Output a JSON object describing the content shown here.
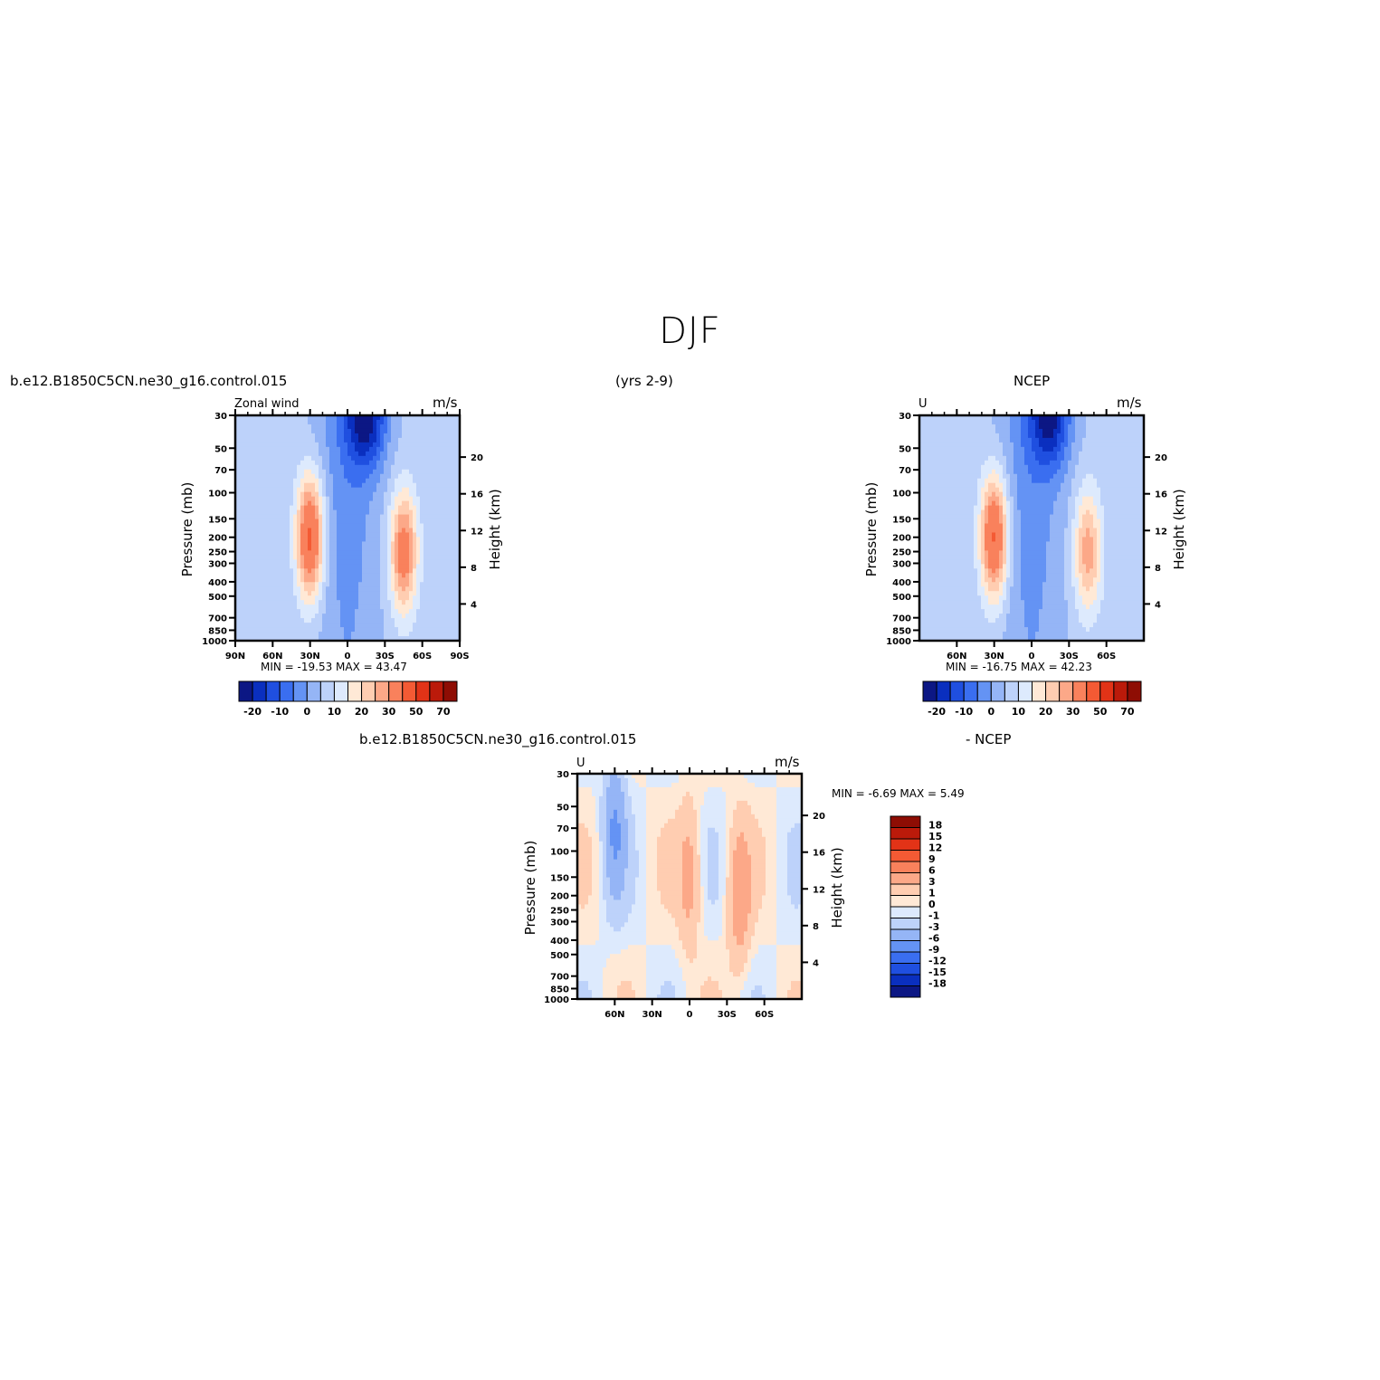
{
  "page": {
    "title": "DJF",
    "subtitle_left": "b.e12.B1850C5CN.ne30_g16.control.015",
    "subtitle_center": "(yrs 2-9)",
    "subtitle_right": "NCEP"
  },
  "panels": {
    "model": {
      "var_label": "Zonal wind",
      "units": "m/s",
      "min_max": "MIN =  -19.53   MAX =   43.47",
      "y_label": "Pressure (mb)",
      "y2_label": "Height (km)"
    },
    "obs": {
      "var_label": "U",
      "units": "m/s",
      "min_max": "MIN =  -16.75   MAX =   42.23",
      "y_label": "Pressure (mb)",
      "y2_label": "Height (km)"
    },
    "diff": {
      "title_left": "b.e12.B1850C5CN.ne30_g16.control.015",
      "title_right": "- NCEP",
      "var_label": "U",
      "units": "m/s",
      "min_max": "MIN =   -6.69   MAX =     5.49",
      "y_label": "Pressure (mb)",
      "y2_label": "Height (km)"
    }
  },
  "chart_data": [
    {
      "type": "heatmap",
      "name": "model",
      "title": "Zonal wind",
      "units": "m/s",
      "xlabel": "",
      "ylabel": "Pressure (mb)",
      "y2label": "Height (km)",
      "x_ticks": [
        "90N",
        "60N",
        "30N",
        "0",
        "30S",
        "60S",
        "90S"
      ],
      "y_ticks": [
        30,
        50,
        70,
        100,
        150,
        200,
        250,
        300,
        400,
        500,
        700,
        850,
        1000
      ],
      "y2_ticks": [
        20,
        16,
        12,
        8,
        4
      ],
      "xlim": [
        90,
        -90
      ],
      "ylim": [
        1000,
        30
      ],
      "y_scale": "log",
      "min": -19.53,
      "max": 43.47,
      "colorbar_labels": [
        "-20",
        "-10",
        "0",
        "10",
        "20",
        "30",
        "50",
        "70"
      ],
      "colorbar_colors": [
        "#0c1784",
        "#0a2fbf",
        "#1f4fe0",
        "#3a6ef0",
        "#6493f4",
        "#95b5f6",
        "#bdd2fa",
        "#ddeafd",
        "#ffe9d6",
        "#ffcdb1",
        "#fca888",
        "#f9815c",
        "#f45a34",
        "#e23317",
        "#bb1a0a",
        "#8e0d04"
      ],
      "features": [
        {
          "kind": "jet_max",
          "lat": 30,
          "pressure": 200,
          "value": 43
        },
        {
          "kind": "jet_max",
          "lat": -45,
          "pressure": 250,
          "value": 35
        },
        {
          "kind": "easterly_min",
          "lat": -15,
          "pressure": 30,
          "value": -19
        }
      ]
    },
    {
      "type": "heatmap",
      "name": "obs",
      "title": "U",
      "units": "m/s",
      "xlabel": "",
      "ylabel": "Pressure (mb)",
      "y2label": "Height (km)",
      "x_ticks": [
        "60N",
        "30N",
        "0",
        "30S",
        "60S"
      ],
      "y_ticks": [
        30,
        50,
        70,
        100,
        150,
        200,
        250,
        300,
        400,
        500,
        700,
        850,
        1000
      ],
      "y2_ticks": [
        20,
        16,
        12,
        8,
        4
      ],
      "xlim": [
        90,
        -90
      ],
      "ylim": [
        1000,
        30
      ],
      "y_scale": "log",
      "min": -16.75,
      "max": 42.23,
      "colorbar_labels": [
        "-20",
        "-10",
        "0",
        "10",
        "20",
        "30",
        "50",
        "70"
      ],
      "colorbar_colors": [
        "#0c1784",
        "#0a2fbf",
        "#1f4fe0",
        "#3a6ef0",
        "#6493f4",
        "#95b5f6",
        "#bdd2fa",
        "#ddeafd",
        "#ffe9d6",
        "#ffcdb1",
        "#fca888",
        "#f9815c",
        "#f45a34",
        "#e23317",
        "#bb1a0a",
        "#8e0d04"
      ],
      "features": [
        {
          "kind": "jet_max",
          "lat": 30,
          "pressure": 200,
          "value": 42
        },
        {
          "kind": "jet_max",
          "lat": -45,
          "pressure": 250,
          "value": 28
        },
        {
          "kind": "easterly_min",
          "lat": -15,
          "pressure": 30,
          "value": -17
        }
      ]
    },
    {
      "type": "heatmap",
      "name": "diff",
      "title": "U",
      "units": "m/s",
      "xlabel": "",
      "ylabel": "Pressure (mb)",
      "y2label": "Height (km)",
      "x_ticks": [
        "60N",
        "30N",
        "0",
        "30S",
        "60S"
      ],
      "y_ticks": [
        30,
        50,
        70,
        100,
        150,
        200,
        250,
        300,
        400,
        500,
        700,
        850,
        1000
      ],
      "y2_ticks": [
        20,
        16,
        12,
        8,
        4
      ],
      "xlim": [
        90,
        -90
      ],
      "ylim": [
        1000,
        30
      ],
      "y_scale": "log",
      "min": -6.69,
      "max": 5.49,
      "colorbar_labels": [
        "18",
        "15",
        "12",
        "9",
        "6",
        "3",
        "1",
        "0",
        "-1",
        "-3",
        "-6",
        "-9",
        "-12",
        "-15",
        "-18"
      ],
      "colorbar_colors": [
        "#8e0d04",
        "#bb1a0a",
        "#e23317",
        "#f45a34",
        "#f9815c",
        "#fca888",
        "#ffcdb1",
        "#ffe9d6",
        "#ddeafd",
        "#bdd2fa",
        "#95b5f6",
        "#6493f4",
        "#3a6ef0",
        "#1f4fe0",
        "#0a2fbf",
        "#0c1784"
      ],
      "features": [
        {
          "kind": "positive",
          "lat": -40,
          "pressure": 200,
          "value": 5
        },
        {
          "kind": "positive",
          "lat": 0,
          "pressure": 150,
          "value": 4
        },
        {
          "kind": "negative",
          "lat": 60,
          "pressure": 70,
          "value": -6
        }
      ]
    }
  ]
}
